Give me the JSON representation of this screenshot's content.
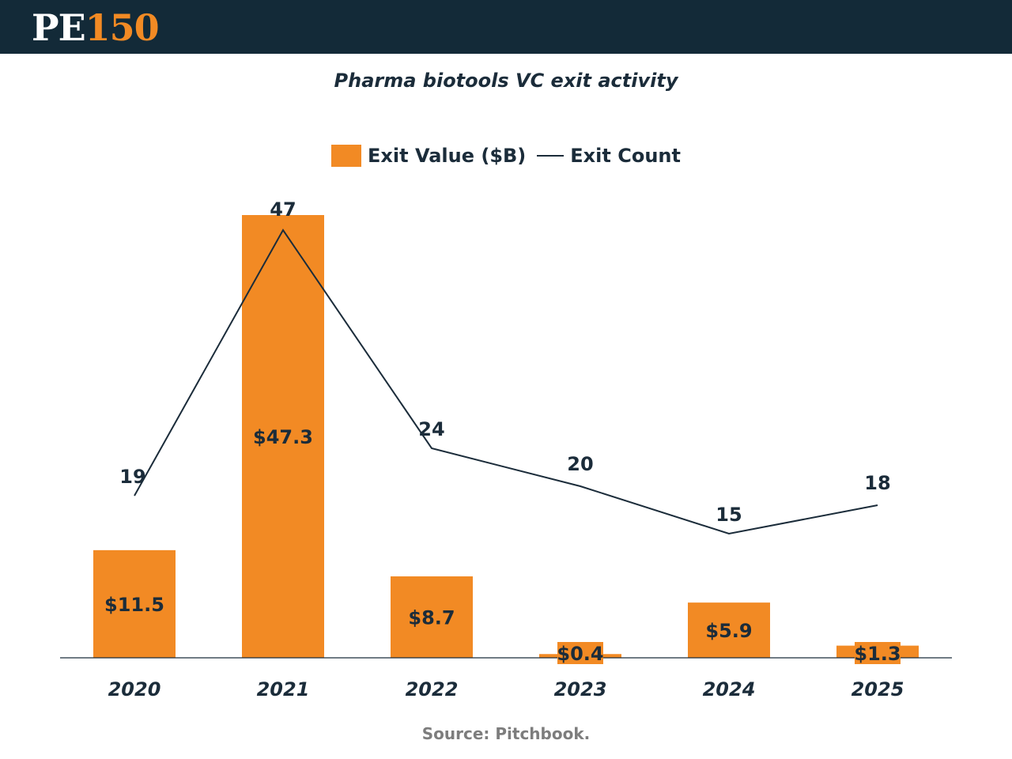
{
  "header": {
    "logo_pe": "PE",
    "logo_number": "150"
  },
  "chart_data": {
    "type": "bar",
    "title": "Pharma biotools VC exit activity",
    "categories": [
      "2020",
      "2021",
      "2022",
      "2023",
      "2024",
      "2025"
    ],
    "series": [
      {
        "name": "Exit Value ($B)",
        "type": "bar",
        "values": [
          11.5,
          47.3,
          8.7,
          0.4,
          5.9,
          1.3
        ],
        "labels": [
          "$11.5",
          "$47.3",
          "$8.7",
          "$0.4",
          "$5.9",
          "$1.3"
        ],
        "color": "#f28a24"
      },
      {
        "name": "Exit Count",
        "type": "line",
        "values": [
          19,
          47,
          24,
          20,
          15,
          18
        ],
        "labels": [
          "19",
          "47",
          "24",
          "20",
          "15",
          "18"
        ],
        "color": "#1b2c3a"
      }
    ],
    "xlabel": "",
    "ylabel": "",
    "grid": false,
    "legend_position": "top-center"
  },
  "footer": {
    "source": "Source:  Pitchbook."
  },
  "colors": {
    "header_bg": "#132a38",
    "accent": "#f28a24",
    "text": "#1b2c3a"
  }
}
